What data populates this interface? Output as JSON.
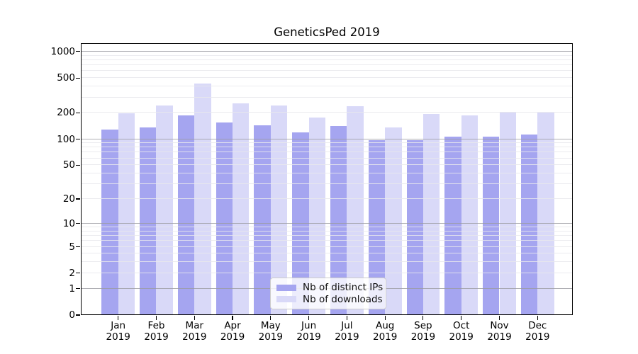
{
  "chart_data": {
    "type": "bar",
    "title": "GeneticsPed 2019",
    "categories": [
      "Jan",
      "Feb",
      "Mar",
      "Apr",
      "May",
      "Jun",
      "Jul",
      "Aug",
      "Sep",
      "Oct",
      "Nov",
      "Dec"
    ],
    "year_label": "2019",
    "series": [
      {
        "name": "Nb of distinct IPs",
        "color": "#a5a5f0",
        "values": [
          129,
          135,
          188,
          154,
          144,
          119,
          141,
          97,
          97,
          106,
          107,
          112
        ]
      },
      {
        "name": "Nb of downloads",
        "color": "#d9d9f8",
        "values": [
          198,
          241,
          430,
          257,
          243,
          177,
          237,
          136,
          194,
          188,
          205,
          202
        ]
      }
    ],
    "xlabel": "",
    "ylabel": "",
    "yaxis": {
      "scale": "log1p",
      "tick_values": [
        0,
        1,
        2,
        5,
        10,
        20,
        50,
        100,
        200,
        500,
        1000
      ],
      "max_value": 1260,
      "major_gridlines": [
        1,
        10,
        100,
        1000
      ],
      "minor_gridlines": [
        2,
        3,
        4,
        5,
        6,
        7,
        8,
        9,
        20,
        30,
        40,
        50,
        60,
        70,
        80,
        90,
        200,
        300,
        400,
        500,
        600,
        700,
        800,
        900
      ]
    },
    "grid": "on",
    "legend_position": "lower center"
  }
}
